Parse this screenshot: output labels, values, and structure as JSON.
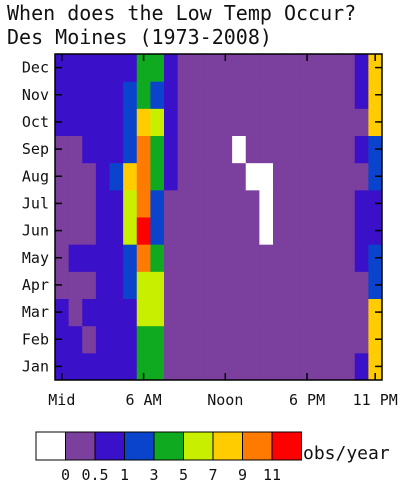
{
  "chart_data": {
    "type": "heatmap",
    "title": "When does the Low Temp Occur?",
    "subtitle": "Des Moines (1973-2008)",
    "x_tick_labels": [
      "Mid",
      "6 AM",
      "Noon",
      "6 PM",
      "11 PM"
    ],
    "x_tick_hours": [
      0,
      6,
      12,
      18,
      23
    ],
    "y_categories": [
      "Jan",
      "Feb",
      "Mar",
      "Apr",
      "May",
      "Jun",
      "Jul",
      "Aug",
      "Sep",
      "Oct",
      "Nov",
      "Dec"
    ],
    "hours": [
      0,
      1,
      2,
      3,
      4,
      5,
      6,
      7,
      8,
      9,
      10,
      11,
      12,
      13,
      14,
      15,
      16,
      17,
      18,
      19,
      20,
      21,
      22,
      23
    ],
    "values_obs_per_year": [
      [
        2,
        2,
        2,
        2,
        2,
        2,
        4,
        4,
        1,
        1,
        1,
        1,
        1,
        1,
        1,
        1,
        1,
        1,
        1,
        1,
        1,
        1,
        2,
        6
      ],
      [
        2,
        2,
        1,
        2,
        2,
        2,
        4,
        4,
        1,
        1,
        1,
        1,
        1,
        1,
        1,
        1,
        1,
        1,
        1,
        1,
        1,
        1,
        1,
        6
      ],
      [
        2,
        1,
        2,
        2,
        2,
        2,
        5,
        5,
        1,
        1,
        1,
        1,
        1,
        1,
        1,
        1,
        1,
        1,
        1,
        1,
        1,
        1,
        1,
        6
      ],
      [
        1,
        1,
        1,
        2,
        2,
        3,
        5,
        5,
        1,
        1,
        1,
        1,
        1,
        1,
        1,
        1,
        1,
        1,
        1,
        1,
        1,
        1,
        1,
        3
      ],
      [
        1,
        2,
        2,
        2,
        2,
        3,
        7,
        4,
        1,
        1,
        1,
        1,
        1,
        1,
        1,
        1,
        1,
        1,
        1,
        1,
        1,
        1,
        2,
        3
      ],
      [
        1,
        1,
        1,
        2,
        2,
        5,
        8,
        3,
        1,
        1,
        1,
        1,
        1,
        1,
        1,
        0,
        1,
        1,
        1,
        1,
        1,
        1,
        2,
        2
      ],
      [
        1,
        1,
        1,
        2,
        2,
        5,
        7,
        3,
        1,
        1,
        1,
        1,
        1,
        1,
        1,
        0,
        1,
        1,
        1,
        1,
        1,
        1,
        2,
        2
      ],
      [
        1,
        1,
        1,
        2,
        3,
        6,
        7,
        4,
        2,
        1,
        1,
        1,
        1,
        1,
        0,
        0,
        1,
        1,
        1,
        1,
        1,
        1,
        1,
        3
      ],
      [
        1,
        1,
        2,
        2,
        2,
        3,
        7,
        4,
        2,
        1,
        1,
        1,
        1,
        0,
        1,
        1,
        1,
        1,
        1,
        1,
        1,
        1,
        2,
        3
      ],
      [
        2,
        2,
        2,
        2,
        2,
        3,
        6,
        5,
        2,
        1,
        1,
        1,
        1,
        1,
        1,
        1,
        1,
        1,
        1,
        1,
        1,
        1,
        1,
        6
      ],
      [
        2,
        2,
        2,
        2,
        2,
        3,
        4,
        3,
        2,
        1,
        1,
        1,
        1,
        1,
        1,
        1,
        1,
        1,
        1,
        1,
        1,
        1,
        2,
        6
      ],
      [
        2,
        2,
        2,
        2,
        2,
        2,
        4,
        4,
        2,
        1,
        1,
        1,
        1,
        1,
        1,
        1,
        1,
        1,
        1,
        1,
        1,
        1,
        2,
        6
      ]
    ],
    "color_scale": {
      "unit": "obs/year",
      "bin_labels": [
        "0",
        "0.5",
        "1",
        "3",
        "5",
        "7",
        "9",
        "11"
      ],
      "colors": [
        "#ffffff",
        "#7b3f9e",
        "#3a10c8",
        "#0a44cc",
        "#10aa20",
        "#c8ef00",
        "#ffcc00",
        "#ff7a00",
        "#ff0000"
      ]
    }
  }
}
